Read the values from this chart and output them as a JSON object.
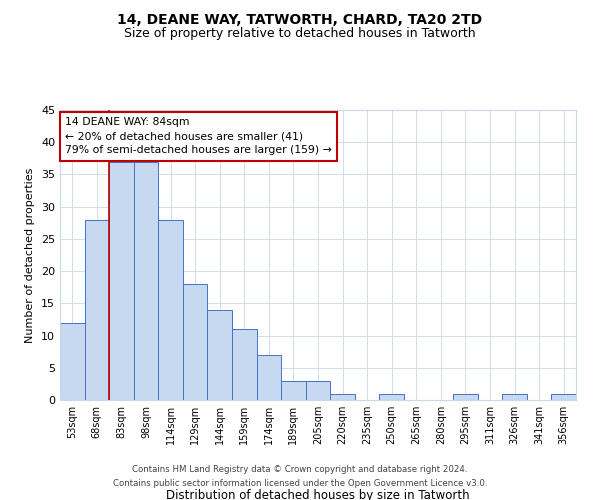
{
  "title": "14, DEANE WAY, TATWORTH, CHARD, TA20 2TD",
  "subtitle": "Size of property relative to detached houses in Tatworth",
  "xlabel": "Distribution of detached houses by size in Tatworth",
  "ylabel": "Number of detached properties",
  "bar_labels": [
    "53sqm",
    "68sqm",
    "83sqm",
    "98sqm",
    "114sqm",
    "129sqm",
    "144sqm",
    "159sqm",
    "174sqm",
    "189sqm",
    "205sqm",
    "220sqm",
    "235sqm",
    "250sqm",
    "265sqm",
    "280sqm",
    "295sqm",
    "311sqm",
    "326sqm",
    "341sqm",
    "356sqm"
  ],
  "bar_values": [
    12,
    28,
    37,
    37,
    28,
    18,
    14,
    11,
    7,
    3,
    3,
    1,
    0,
    1,
    0,
    0,
    1,
    0,
    1,
    0,
    1
  ],
  "bar_color": "#c6d9f0",
  "bar_edge_color": "#4472c4",
  "highlight_line_color": "#c00000",
  "highlight_bar_index": 2,
  "ylim": [
    0,
    45
  ],
  "yticks": [
    0,
    5,
    10,
    15,
    20,
    25,
    30,
    35,
    40,
    45
  ],
  "annotation_line1": "14 DEANE WAY: 84sqm",
  "annotation_line2": "← 20% of detached houses are smaller (41)",
  "annotation_line3": "79% of semi-detached houses are larger (159) →",
  "annotation_box_color": "#ffffff",
  "annotation_box_edge": "#c00000",
  "footer_line1": "Contains HM Land Registry data © Crown copyright and database right 2024.",
  "footer_line2": "Contains public sector information licensed under the Open Government Licence v3.0.",
  "bg_color": "#ffffff",
  "grid_color": "#c8d8ea"
}
